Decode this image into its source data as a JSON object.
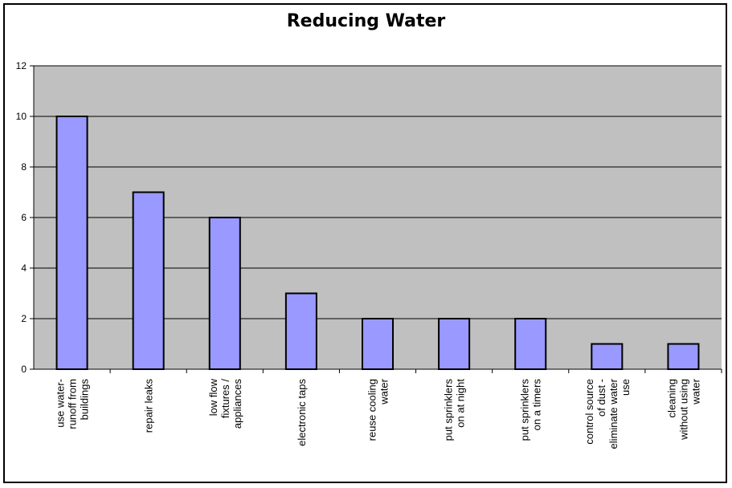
{
  "chart_data": {
    "type": "bar",
    "title": "Reducing Water",
    "xlabel": "",
    "ylabel": "",
    "ylim": [
      0,
      12
    ],
    "yticks": [
      "0",
      "2",
      "4",
      "6",
      "8",
      "10",
      "12"
    ],
    "grid": true,
    "legend": "none",
    "categories": [
      [
        "use water-",
        "runoff from",
        "buildings"
      ],
      [
        "repair leaks"
      ],
      [
        "low flow",
        "fixtures /",
        "appliances"
      ],
      [
        "electronic taps"
      ],
      [
        "reuse cooling",
        "water"
      ],
      [
        "put sprinklers",
        "on at night"
      ],
      [
        "put sprinklers",
        "on a timers"
      ],
      [
        "control source",
        "of dust -",
        "eliminate water",
        "use"
      ],
      [
        "cleaning",
        "without using",
        "water"
      ]
    ],
    "values": [
      10,
      7,
      6,
      3,
      2,
      2,
      2,
      1,
      1
    ],
    "colors": {
      "plot_background": "#c0c0c0",
      "bar_fill": "#9999ff",
      "bar_stroke": "#000000",
      "grid": "#000000"
    }
  }
}
